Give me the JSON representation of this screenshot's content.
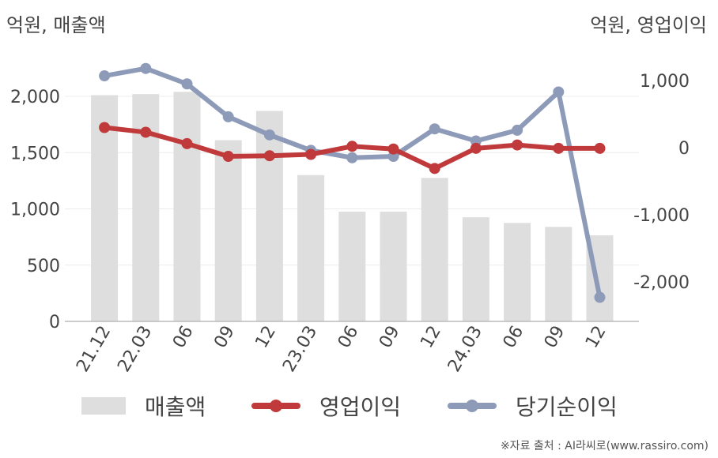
{
  "units": {
    "left": "억원, 매출액",
    "right": "억원, 영업이익"
  },
  "colors": {
    "sales": "#dedede",
    "op": "#c0393b",
    "net": "#8e9bb8",
    "axis": "#bbbbbb",
    "grid": "#ececec",
    "tick": "#444444"
  },
  "chart_data": {
    "type": "bar+line",
    "categories": [
      "21.12",
      "22.03",
      "06",
      "09",
      "12",
      "23.03",
      "06",
      "09",
      "12",
      "24.03",
      "06",
      "09",
      "12"
    ],
    "left_axis": {
      "ticks": [
        0,
        500,
        1000,
        1500,
        2000
      ],
      "tick_labels": [
        "0",
        "500",
        "1,000",
        "1,500",
        "2,000"
      ],
      "range": [
        0,
        2400
      ]
    },
    "right_axis": {
      "ticks": [
        1000,
        0,
        -1000,
        -2000
      ],
      "tick_labels": [
        "1,000",
        "0",
        "-1,000",
        "-2,000"
      ],
      "range": [
        -2600,
        1200
      ]
    },
    "series": [
      {
        "name": "매출액",
        "type": "bar",
        "axis": "left",
        "values": [
          2010,
          2020,
          2040,
          1610,
          1870,
          1300,
          975,
          975,
          1275,
          925,
          875,
          840,
          765
        ]
      },
      {
        "name": "영업이익",
        "type": "line",
        "axis": "right",
        "values": [
          300,
          230,
          60,
          -130,
          -120,
          -100,
          20,
          -20,
          -310,
          -10,
          40,
          -10,
          -10
        ]
      },
      {
        "name": "당기순이익",
        "type": "line",
        "axis": "right",
        "values": [
          1070,
          1180,
          950,
          460,
          190,
          -40,
          -150,
          -130,
          280,
          100,
          260,
          830,
          -2230
        ]
      }
    ],
    "grid": "horizontal"
  },
  "legend": [
    {
      "label": "매출액",
      "kind": "bar",
      "color": "#dedede"
    },
    {
      "label": "영업이익",
      "kind": "line",
      "color": "#c0393b"
    },
    {
      "label": "당기순이익",
      "kind": "line",
      "color": "#8e9bb8"
    }
  ],
  "source": "※자료 출처 : AI라씨로(www.rassiro.com)"
}
